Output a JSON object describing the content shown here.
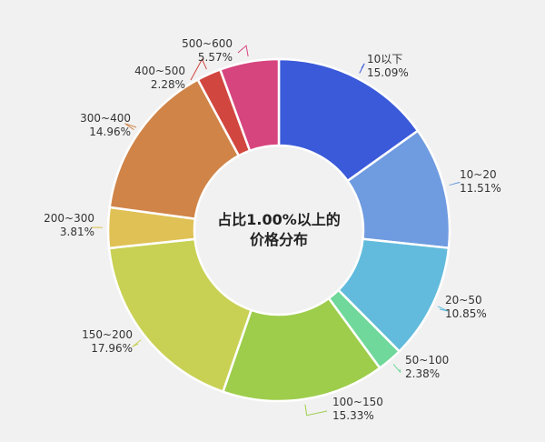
{
  "chart_data": {
    "type": "pie",
    "donut": true,
    "center_lines": [
      "占比1.00%以上的",
      "价格分布"
    ],
    "slices": [
      {
        "name": "10以下",
        "value": 15.09,
        "value_label": "15.09%",
        "color": "#3b5ad9"
      },
      {
        "name": "10~20",
        "value": 11.51,
        "value_label": "11.51%",
        "color": "#6f9be0"
      },
      {
        "name": "20~50",
        "value": 10.85,
        "value_label": "10.85%",
        "color": "#62bbdc"
      },
      {
        "name": "50~100",
        "value": 2.38,
        "value_label": "2.38%",
        "color": "#6fd89a"
      },
      {
        "name": "100~150",
        "value": 15.33,
        "value_label": "15.33%",
        "color": "#9dcd4b"
      },
      {
        "name": "150~200",
        "value": 17.96,
        "value_label": "17.96%",
        "color": "#c8d154"
      },
      {
        "name": "200~300",
        "value": 3.81,
        "value_label": "3.81%",
        "color": "#e0c155"
      },
      {
        "name": "300~400",
        "value": 14.96,
        "value_label": "14.96%",
        "color": "#d08448"
      },
      {
        "name": "400~500",
        "value": 2.28,
        "value_label": "2.28%",
        "color": "#d1463f"
      },
      {
        "name": "500~600",
        "value": 5.57,
        "value_label": "5.57%",
        "color": "#d6457e"
      }
    ]
  }
}
